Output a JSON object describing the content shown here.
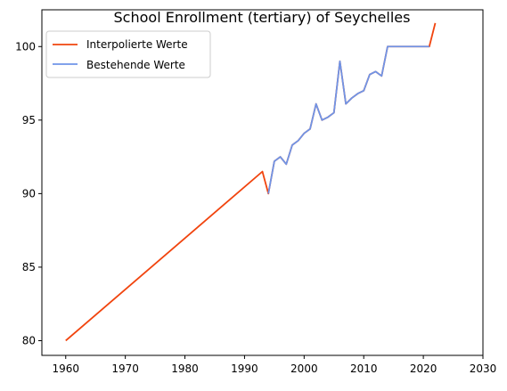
{
  "chart_data": {
    "type": "line",
    "title": "School Enrollment (tertiary) of Seychelles",
    "xlabel": "",
    "ylabel": "",
    "xlim": [
      1956,
      2030
    ],
    "ylim": [
      79,
      102.5
    ],
    "x_ticks": [
      1960,
      1970,
      1980,
      1990,
      2000,
      2010,
      2020,
      2030
    ],
    "y_ticks": [
      80,
      85,
      90,
      95,
      100
    ],
    "grid": false,
    "legend_position": "top-left",
    "series": [
      {
        "name": "Interpolierte Werte",
        "color": "#f1440e",
        "x": [
          1960,
          1993,
          1994,
          1995,
          1996,
          1997,
          1998,
          1999,
          2000,
          2001,
          2002,
          2003,
          2004,
          2005,
          2006,
          2007,
          2008,
          2009,
          2010,
          2011,
          2012,
          2013,
          2014,
          2015,
          2016,
          2017,
          2018,
          2019,
          2020,
          2021,
          2022
        ],
        "values": [
          80.0,
          91.5,
          90.0,
          92.2,
          92.5,
          92.0,
          93.3,
          93.6,
          94.1,
          94.4,
          96.1,
          95.0,
          95.2,
          95.5,
          99.0,
          96.1,
          96.5,
          96.8,
          97.0,
          98.1,
          98.3,
          98.0,
          100.0,
          100.0,
          100.0,
          100.0,
          100.0,
          100.0,
          100.0,
          100.0,
          101.6
        ]
      },
      {
        "name": "Bestehende Werte",
        "color": "#6f95e8",
        "x": [
          1994,
          1995,
          1996,
          1997,
          1998,
          1999,
          2000,
          2001,
          2002,
          2003,
          2004,
          2005,
          2006,
          2007,
          2008,
          2009,
          2010,
          2011,
          2012,
          2013,
          2014,
          2021
        ],
        "values": [
          90.0,
          92.2,
          92.5,
          92.0,
          93.3,
          93.6,
          94.1,
          94.4,
          96.1,
          95.0,
          95.2,
          95.5,
          99.0,
          96.1,
          96.5,
          96.8,
          97.0,
          98.1,
          98.3,
          98.0,
          100.0,
          100.0
        ]
      }
    ]
  }
}
